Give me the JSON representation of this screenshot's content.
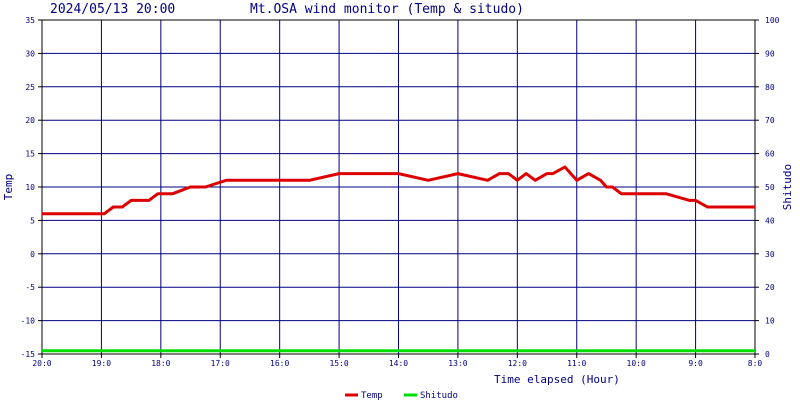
{
  "header": {
    "timestamp": "2024/05/13 20:00",
    "title": "Mt.OSA wind monitor (Temp & situdo)"
  },
  "chart_data": {
    "type": "line",
    "title": "Mt.OSA wind monitor (Temp & situdo)",
    "xlabel": "Time elapsed (Hour)",
    "ylabel": "Temp",
    "y2label": "Shitudo",
    "x_tick_labels": [
      "20:0",
      "19:0",
      "18:0",
      "17:0",
      "16:0",
      "15:0",
      "14:0",
      "13:0",
      "12:0",
      "11:0",
      "10:0",
      "9:0",
      "8:0"
    ],
    "xlim": [
      0,
      12
    ],
    "ylim": [
      -15,
      35
    ],
    "y_ticks": [
      -15,
      -10,
      -5,
      0,
      5,
      10,
      15,
      20,
      25,
      30,
      35
    ],
    "y2lim": [
      0,
      100
    ],
    "y2_ticks": [
      0,
      10,
      20,
      30,
      40,
      50,
      60,
      70,
      80,
      90,
      100
    ],
    "grid": true,
    "legend_position": "bottom-center",
    "series": [
      {
        "name": "Temp",
        "color": "#dd0000",
        "axis": "left",
        "x": [
          0,
          0.9,
          1.05,
          1.2,
          1.35,
          1.5,
          1.8,
          1.95,
          2.2,
          2.5,
          2.65,
          2.75,
          3.1,
          3.3,
          3.45,
          4.0,
          4.5,
          5.0,
          5.5,
          5.8,
          6.0,
          6.5,
          7.0,
          7.5,
          7.7,
          7.85,
          8.0,
          8.15,
          8.3,
          8.5,
          8.6,
          8.8,
          9.0,
          9.2,
          9.4,
          9.5,
          9.6,
          9.75,
          10.0,
          10.15,
          10.5,
          10.9,
          11.0,
          11.2,
          11.5,
          12.0
        ],
        "y": [
          6,
          6,
          6,
          7,
          7,
          8,
          8,
          9,
          9,
          10,
          10,
          10,
          11,
          11,
          11,
          11,
          11,
          12,
          12,
          12,
          12,
          11,
          12,
          11,
          12,
          12,
          11,
          12,
          11,
          12,
          12,
          13,
          11,
          12,
          11,
          10,
          10,
          9,
          9,
          9,
          9,
          8,
          8,
          7,
          7,
          7
        ]
      },
      {
        "name": "Shitudo",
        "color": "#00dd00",
        "axis": "right",
        "x": [
          0,
          12
        ],
        "y": [
          1,
          1
        ]
      }
    ]
  }
}
